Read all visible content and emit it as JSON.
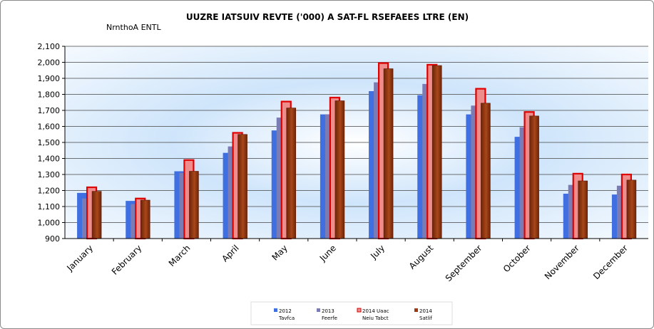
{
  "chart_data": {
    "type": "bar",
    "title": "UUZRE IATSUIV REVTE ('000) A SAT-FL RSEFAEES LTRE (EN)",
    "subtitle": "NrnthoA ENTL",
    "categories": [
      "January",
      "February",
      "March",
      "April",
      "May",
      "June",
      "July",
      "August",
      "September",
      "October",
      "November",
      "December"
    ],
    "ylim": [
      900,
      2100
    ],
    "ytick_step": 100,
    "grid": true,
    "legend_position": "bottom",
    "series": [
      {
        "name": "2012",
        "name_line2": "Tavfca",
        "color": "#3f6fe0",
        "style": "flat",
        "values": [
          1185,
          1135,
          1320,
          1435,
          1575,
          1675,
          1820,
          1795,
          1675,
          1535,
          1180,
          1175
        ]
      },
      {
        "name": "2013",
        "name_line2": "Feerfe",
        "color": "#7c7cb4",
        "style": "flat",
        "values": [
          1150,
          1115,
          1310,
          1475,
          1655,
          1675,
          1875,
          1865,
          1730,
          1595,
          1235,
          1230
        ]
      },
      {
        "name": "2014 Uaac",
        "name_line2": "Neiu Tabct",
        "color": "#ef8d8d",
        "style": "outlined",
        "outline": "#e00000",
        "values": [
          1220,
          1150,
          1390,
          1560,
          1755,
          1780,
          1995,
          1985,
          1835,
          1690,
          1305,
          1300
        ]
      },
      {
        "name": "2014",
        "name_line2": "Satlif",
        "color": "#9c3b12",
        "style": "shaded",
        "values": [
          1195,
          1140,
          1320,
          1550,
          1715,
          1760,
          1960,
          1980,
          1745,
          1665,
          1260,
          1265
        ]
      }
    ]
  }
}
